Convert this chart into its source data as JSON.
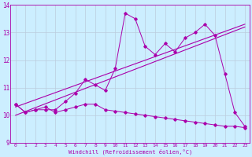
{
  "xlabel": "Windchill (Refroidissement éolien,°C)",
  "xlim": [
    -0.5,
    23.5
  ],
  "ylim": [
    9,
    14
  ],
  "yticks": [
    9,
    10,
    11,
    12,
    13,
    14
  ],
  "xticks": [
    0,
    1,
    2,
    3,
    4,
    5,
    6,
    7,
    8,
    9,
    10,
    11,
    12,
    13,
    14,
    15,
    16,
    17,
    18,
    19,
    20,
    21,
    22,
    23
  ],
  "bg_color": "#cceeff",
  "line_color": "#aa00aa",
  "grid_color": "#bbccdd",
  "lines": [
    {
      "x": [
        0,
        1,
        2,
        3,
        4,
        5,
        6,
        7,
        8,
        9,
        10,
        11,
        12,
        13,
        14,
        15,
        16,
        17,
        18,
        19,
        20,
        21,
        22,
        23
      ],
      "y": [
        10.4,
        10.1,
        10.2,
        10.2,
        10.2,
        10.5,
        10.8,
        11.3,
        11.1,
        10.9,
        11.7,
        13.7,
        13.5,
        12.5,
        12.2,
        12.6,
        12.3,
        12.8,
        13.0,
        13.3,
        12.9,
        11.5,
        10.1,
        9.6
      ],
      "marker": true
    },
    {
      "x": [
        0,
        1,
        2,
        3,
        4,
        5,
        6,
        7,
        8,
        9,
        10,
        11,
        12,
        13,
        14,
        15,
        16,
        17,
        18,
        19,
        20,
        21,
        22,
        23
      ],
      "y": [
        10.4,
        10.1,
        10.2,
        10.3,
        10.1,
        10.2,
        10.3,
        10.4,
        10.4,
        10.2,
        10.15,
        10.1,
        10.05,
        10.0,
        9.95,
        9.9,
        9.85,
        9.8,
        9.75,
        9.7,
        9.65,
        9.6,
        9.6,
        9.55
      ],
      "marker": true
    },
    {
      "x": [
        0,
        23
      ],
      "y": [
        10.0,
        13.2
      ],
      "marker": false
    },
    {
      "x": [
        0,
        23
      ],
      "y": [
        10.3,
        13.3
      ],
      "marker": false
    }
  ]
}
